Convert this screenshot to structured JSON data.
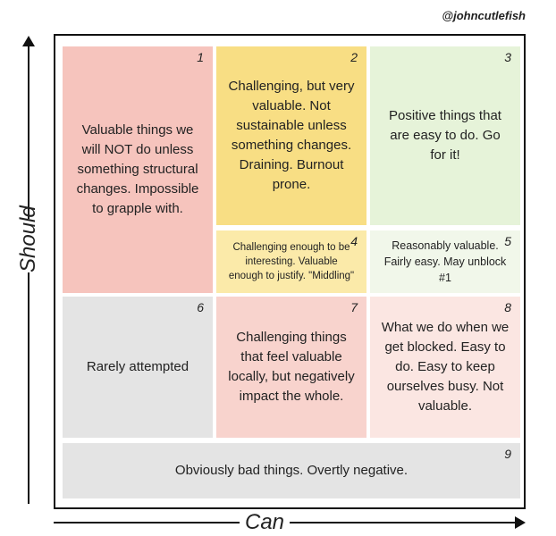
{
  "credit": "@johncutlefish",
  "axes": {
    "y_label": "Should",
    "x_label": "Can"
  },
  "cells": [
    {
      "number": "1",
      "text": "Valuable things we will NOT do unless something structural changes. Impossible to grapple with.",
      "color": "#f6c4bd"
    },
    {
      "number": "2",
      "text": "Challenging, but very valuable. Not sustainable unless something changes. Draining. Burnout prone.",
      "color": "#f8de84"
    },
    {
      "number": "3",
      "text": "Positive things that are easy to do. Go for it!",
      "color": "#e6f3d9"
    },
    {
      "number": "4",
      "text": "Challenging enough to be interesting. Valuable enough to justify. \"Middling\"",
      "color": "#fbeaa9"
    },
    {
      "number": "5",
      "text": "Reasonably valuable. Fairly easy. May unblock #1",
      "color": "#f1f7ea"
    },
    {
      "number": "6",
      "text": "Rarely attempted",
      "color": "#e4e4e4"
    },
    {
      "number": "7",
      "text": "Challenging things that feel valuable locally, but negatively impact the whole.",
      "color": "#f8d3cd"
    },
    {
      "number": "8",
      "text": "What we do when we get blocked. Easy to do. Easy to keep ourselves busy. Not valuable.",
      "color": "#fbe6e2"
    },
    {
      "number": "9",
      "text": "Obviously bad things. Overtly negative.",
      "color": "#e4e4e4"
    }
  ]
}
